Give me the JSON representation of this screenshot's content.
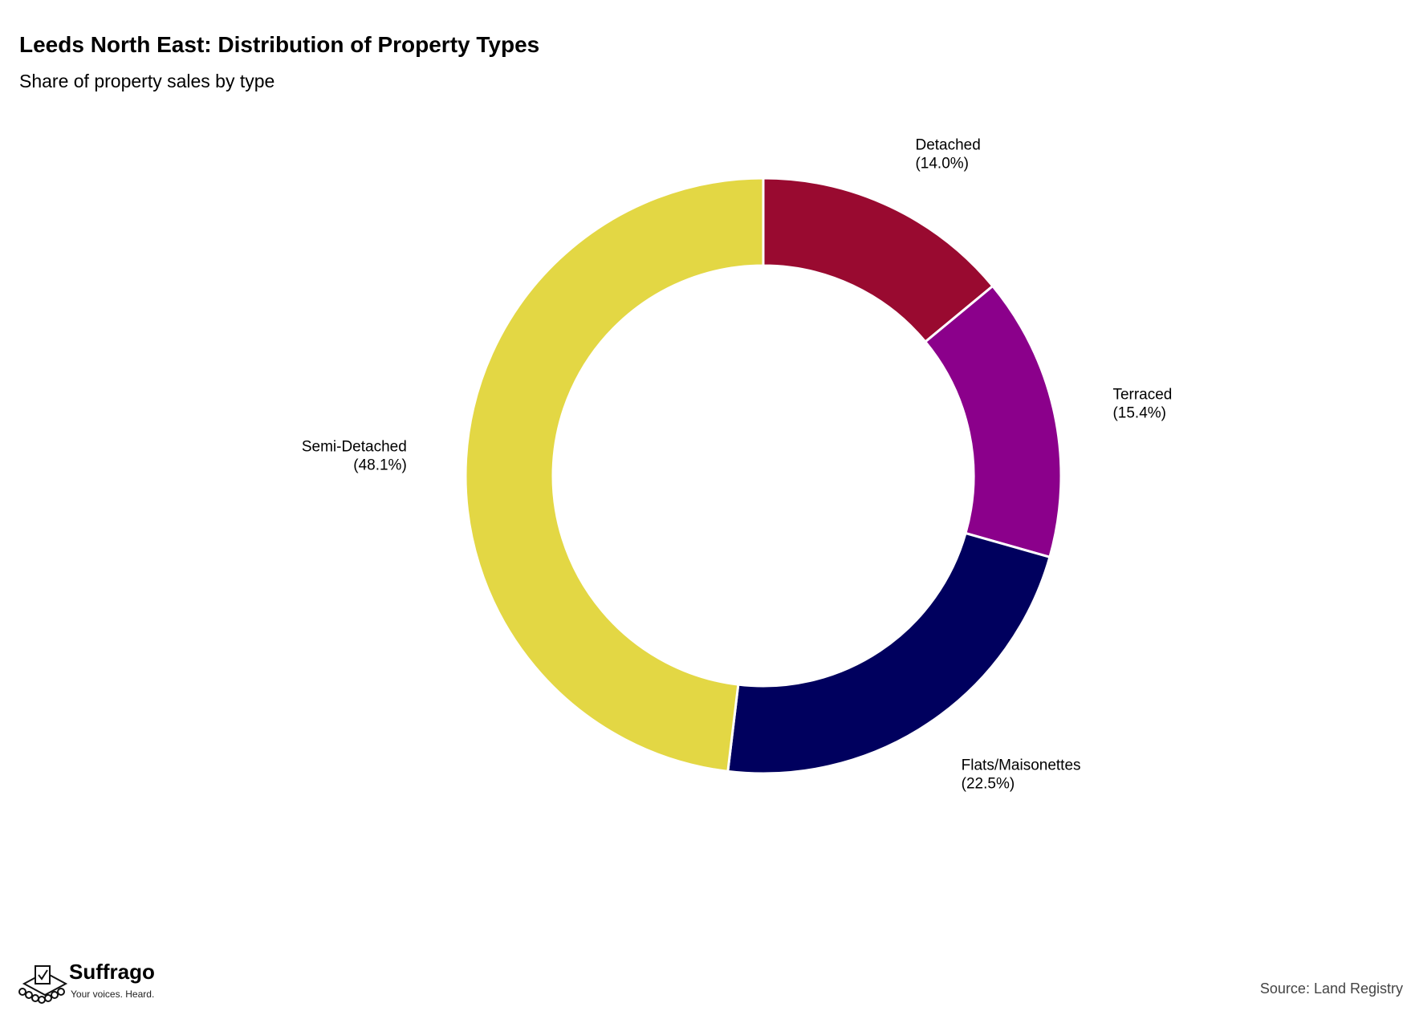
{
  "header": {
    "title": "Leeds North East: Distribution of Property Types",
    "subtitle": "Share of property sales by type"
  },
  "chart_data": {
    "type": "pie",
    "donut": true,
    "title": "Leeds North East: Distribution of Property Types",
    "subtitle": "Share of property sales by type",
    "categories": [
      "Detached",
      "Terraced",
      "Flats/Maisonettes",
      "Semi-Detached"
    ],
    "values": [
      14.0,
      15.4,
      22.5,
      48.1
    ],
    "labels": [
      "(14.0%)",
      "(15.4%)",
      "(22.5%)",
      "(48.1%)"
    ],
    "colors": [
      "#990a30",
      "#8b008b",
      "#00005e",
      "#e3d744"
    ],
    "start": "12 o'clock, clockwise"
  },
  "branding": {
    "logo_name": "Suffrago",
    "logo_tagline": "Your voices. Heard.",
    "logo_icon": "ballot-box-icon"
  },
  "footer": {
    "source": "Source: Land Registry"
  }
}
